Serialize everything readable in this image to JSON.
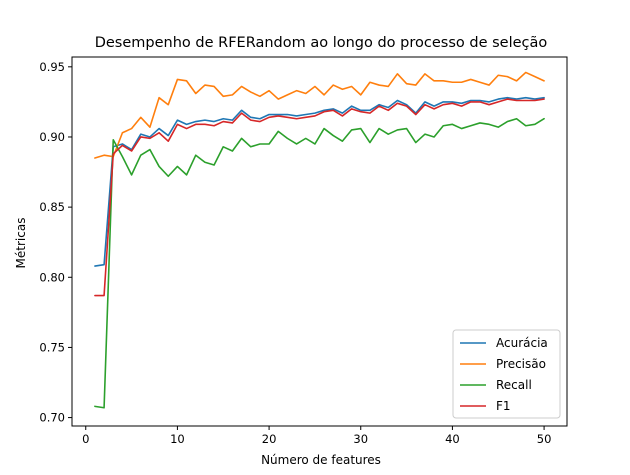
{
  "chart_data": {
    "type": "line",
    "title": "Desempenho de RFERandom ao longo do processo de seleção",
    "xlabel": "Número de features",
    "ylabel": "Métricas",
    "xlim": [
      -1.5,
      52.5
    ],
    "ylim": [
      0.694,
      0.957
    ],
    "xticks": [
      0,
      10,
      20,
      30,
      40,
      50
    ],
    "yticks": [
      0.7,
      0.75,
      0.8,
      0.85,
      0.9,
      0.95
    ],
    "ytick_labels": [
      "0.70",
      "0.75",
      "0.80",
      "0.85",
      "0.90",
      "0.95"
    ],
    "grid": false,
    "legend_position": "lower-right",
    "x": [
      1,
      2,
      3,
      4,
      5,
      6,
      7,
      8,
      9,
      10,
      11,
      12,
      13,
      14,
      15,
      16,
      17,
      18,
      19,
      20,
      21,
      22,
      23,
      24,
      25,
      26,
      27,
      28,
      29,
      30,
      31,
      32,
      33,
      34,
      35,
      36,
      37,
      38,
      39,
      40,
      41,
      42,
      43,
      44,
      45,
      46,
      47,
      48,
      49,
      50
    ],
    "series": [
      {
        "name": "Acurácia",
        "color": "#1f77b4",
        "values": [
          0.808,
          0.809,
          0.893,
          0.895,
          0.891,
          0.902,
          0.9,
          0.906,
          0.901,
          0.912,
          0.909,
          0.911,
          0.912,
          0.911,
          0.913,
          0.912,
          0.919,
          0.914,
          0.913,
          0.916,
          0.916,
          0.916,
          0.915,
          0.916,
          0.917,
          0.919,
          0.92,
          0.917,
          0.922,
          0.919,
          0.919,
          0.923,
          0.921,
          0.926,
          0.923,
          0.917,
          0.925,
          0.922,
          0.925,
          0.925,
          0.924,
          0.926,
          0.926,
          0.925,
          0.927,
          0.928,
          0.927,
          0.928,
          0.927,
          0.928
        ]
      },
      {
        "name": "Precisão",
        "color": "#ff7f0e",
        "values": [
          0.885,
          0.887,
          0.886,
          0.903,
          0.906,
          0.914,
          0.907,
          0.928,
          0.923,
          0.941,
          0.94,
          0.931,
          0.937,
          0.936,
          0.929,
          0.93,
          0.936,
          0.932,
          0.929,
          0.933,
          0.927,
          0.93,
          0.933,
          0.931,
          0.936,
          0.93,
          0.937,
          0.934,
          0.936,
          0.93,
          0.939,
          0.937,
          0.936,
          0.945,
          0.938,
          0.937,
          0.945,
          0.94,
          0.94,
          0.939,
          0.939,
          0.941,
          0.939,
          0.937,
          0.944,
          0.943,
          0.94,
          0.946,
          0.943,
          0.94
        ]
      },
      {
        "name": "Recall",
        "color": "#2ca02c",
        "values": [
          0.708,
          0.707,
          0.898,
          0.886,
          0.873,
          0.887,
          0.891,
          0.879,
          0.872,
          0.879,
          0.873,
          0.887,
          0.882,
          0.88,
          0.893,
          0.89,
          0.899,
          0.893,
          0.895,
          0.895,
          0.904,
          0.899,
          0.895,
          0.899,
          0.895,
          0.906,
          0.901,
          0.897,
          0.905,
          0.906,
          0.896,
          0.906,
          0.902,
          0.905,
          0.906,
          0.896,
          0.902,
          0.9,
          0.908,
          0.909,
          0.906,
          0.908,
          0.91,
          0.909,
          0.907,
          0.911,
          0.913,
          0.908,
          0.909,
          0.913
        ]
      },
      {
        "name": "F1",
        "color": "#d62728",
        "values": [
          0.787,
          0.787,
          0.888,
          0.894,
          0.89,
          0.9,
          0.899,
          0.903,
          0.897,
          0.909,
          0.906,
          0.909,
          0.909,
          0.908,
          0.911,
          0.91,
          0.917,
          0.912,
          0.911,
          0.914,
          0.915,
          0.914,
          0.913,
          0.914,
          0.915,
          0.918,
          0.919,
          0.915,
          0.92,
          0.918,
          0.917,
          0.922,
          0.919,
          0.924,
          0.922,
          0.916,
          0.923,
          0.92,
          0.923,
          0.924,
          0.922,
          0.925,
          0.925,
          0.923,
          0.925,
          0.927,
          0.926,
          0.926,
          0.926,
          0.927
        ]
      }
    ]
  }
}
